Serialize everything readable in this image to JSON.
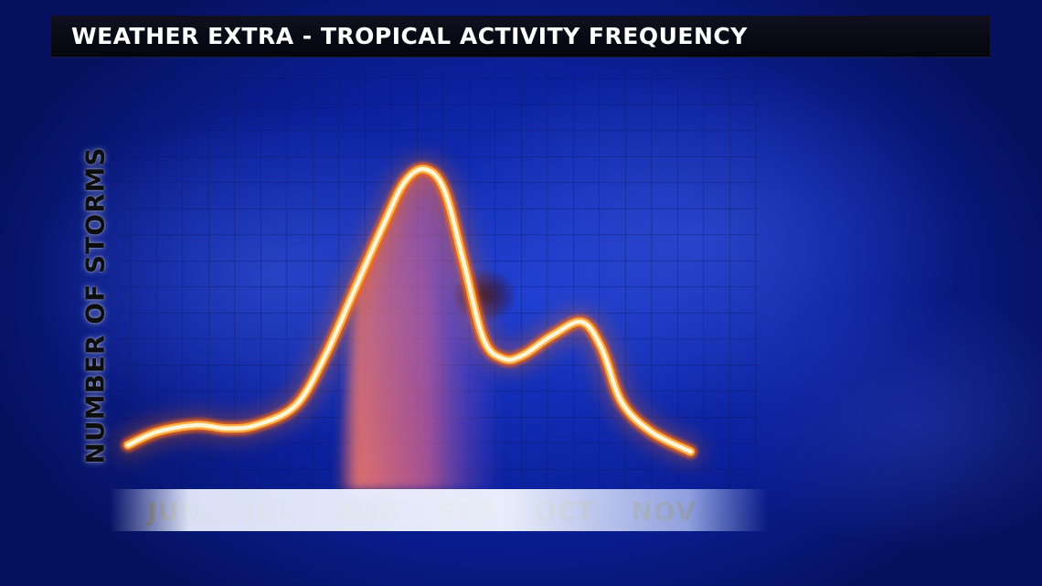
{
  "header": {
    "title": "WEATHER EXTRA - TROPICAL ACTIVITY FREQUENCY"
  },
  "chart_data": {
    "type": "line",
    "title": "WEATHER EXTRA - TROPICAL ACTIVITY FREQUENCY",
    "xlabel": "",
    "ylabel": "NUMBER OF STORMS",
    "categories": [
      "JUN",
      "JUL",
      "AUG",
      "SEP",
      "OCT",
      "NOV"
    ],
    "y_ticks_printed": false,
    "ylim": [
      0,
      100
    ],
    "series": [
      {
        "x": [
          0.0,
          0.3,
          0.7,
          1.0,
          1.3,
          1.7,
          2.0,
          2.3,
          2.6,
          2.8,
          3.0,
          3.2,
          3.4,
          3.6,
          3.8,
          4.0,
          4.3,
          4.6,
          4.8,
          5.0,
          5.3,
          5.7
        ],
        "values": [
          5,
          9,
          11,
          10,
          11,
          17,
          32,
          52,
          72,
          84,
          88,
          82,
          60,
          37,
          31,
          32,
          38,
          42,
          34,
          18,
          9,
          3
        ]
      }
    ],
    "highlight": {
      "from": "AUG",
      "to": "SEP",
      "color": "#ff7a66"
    },
    "grid": true,
    "line_color_core": "#fff6d8",
    "line_color_glow": "#ff6a10",
    "legend": "none"
  }
}
